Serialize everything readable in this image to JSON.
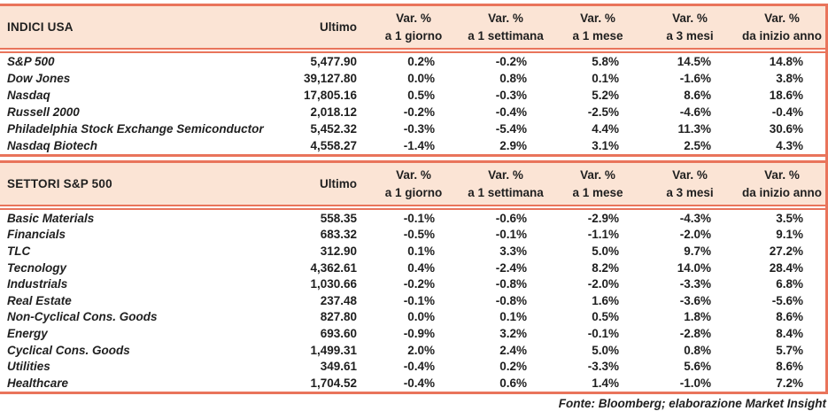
{
  "colors": {
    "accent_line": "#E9745B",
    "header_fill": "#FBE4D5",
    "text": "#1F1F1F"
  },
  "labels": {
    "var": "Var. %",
    "ultimo": "Ultimo",
    "periods": [
      "a 1 giorno",
      "a 1 settimana",
      "a 1 mese",
      "a 3 mesi",
      "da inizio anno"
    ]
  },
  "tables": [
    {
      "title": "INDICI USA",
      "rows": [
        [
          "S&P 500",
          "5,477.90",
          "0.2%",
          "-0.2%",
          "5.8%",
          "14.5%",
          "14.8%"
        ],
        [
          "Dow Jones",
          "39,127.80",
          "0.0%",
          "0.8%",
          "0.1%",
          "-1.6%",
          "3.8%"
        ],
        [
          "Nasdaq",
          "17,805.16",
          "0.5%",
          "-0.3%",
          "5.2%",
          "8.6%",
          "18.6%"
        ],
        [
          "Russell 2000",
          "2,018.12",
          "-0.2%",
          "-0.4%",
          "-2.5%",
          "-4.6%",
          "-0.4%"
        ],
        [
          "Philadelphia Stock Exchange Semiconductor",
          "5,452.32",
          "-0.3%",
          "-5.4%",
          "4.4%",
          "11.3%",
          "30.6%"
        ],
        [
          "Nasdaq Biotech",
          "4,558.27",
          "-1.4%",
          "2.9%",
          "3.1%",
          "2.5%",
          "4.3%"
        ]
      ]
    },
    {
      "title": "SETTORI S&P 500",
      "rows": [
        [
          "Basic Materials",
          "558.35",
          "-0.1%",
          "-0.6%",
          "-2.9%",
          "-4.3%",
          "3.5%"
        ],
        [
          "Financials",
          "683.32",
          "-0.5%",
          "-0.1%",
          "-1.1%",
          "-2.0%",
          "9.1%"
        ],
        [
          "TLC",
          "312.90",
          "0.1%",
          "3.3%",
          "5.0%",
          "9.7%",
          "27.2%"
        ],
        [
          "Tecnology",
          "4,362.61",
          "0.4%",
          "-2.4%",
          "8.2%",
          "14.0%",
          "28.4%"
        ],
        [
          "Industrials",
          "1,030.66",
          "-0.2%",
          "-0.8%",
          "-2.0%",
          "-3.3%",
          "6.8%"
        ],
        [
          "Real Estate",
          "237.48",
          "-0.1%",
          "-0.8%",
          "1.6%",
          "-3.6%",
          "-5.6%"
        ],
        [
          "Non-Cyclical Cons. Goods",
          "827.80",
          "0.0%",
          "0.1%",
          "0.5%",
          "1.8%",
          "8.6%"
        ],
        [
          "Energy",
          "693.60",
          "-0.9%",
          "3.2%",
          "-0.1%",
          "-2.8%",
          "8.4%"
        ],
        [
          "Cyclical Cons. Goods",
          "1,499.31",
          "2.0%",
          "2.4%",
          "5.0%",
          "0.8%",
          "5.7%"
        ],
        [
          "Utilities",
          "349.61",
          "-0.4%",
          "0.2%",
          "-3.3%",
          "5.6%",
          "8.6%"
        ],
        [
          "Healthcare",
          "1,704.52",
          "-0.4%",
          "0.6%",
          "1.4%",
          "-1.0%",
          "7.2%"
        ]
      ]
    }
  ],
  "footer": "Fonte: Bloomberg; elaborazione Market Insight"
}
